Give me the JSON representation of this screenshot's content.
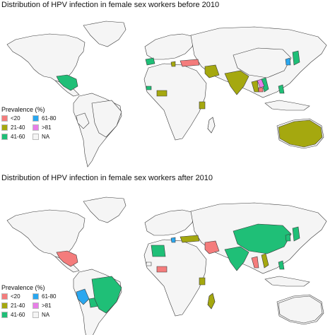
{
  "colors": {
    "land": "#f5f5f5",
    "border": "#3a3a3a",
    "lt20": "#f47c7c",
    "c21_40": "#a5a80f",
    "c41_60": "#1fbf77",
    "c61_80": "#2aa7ef",
    "gt81": "#e87ee8",
    "na": "#f5f5f5"
  },
  "legend": {
    "title": "Prevalence (%)",
    "items": [
      {
        "label": "<20",
        "color": "#f47c7c"
      },
      {
        "label": "61-80",
        "color": "#2aa7ef"
      },
      {
        "label": "21-40",
        "color": "#a5a80f"
      },
      {
        "label": ">81",
        "color": "#e87ee8"
      },
      {
        "label": "41-60",
        "color": "#1fbf77"
      },
      {
        "label": "NA",
        "color": "#f5f5f5"
      }
    ]
  },
  "maps": [
    {
      "title": "Distribution of HPV infection in female sex workers before 2010",
      "regions": {
        "mexico": "41-60",
        "turkey": "<20",
        "iran": "21-40",
        "india": "21-40",
        "thailand": "21-40",
        "vietnam": "41-60",
        "cambodia": "<20",
        "laos": ">81",
        "japan": "41-60",
        "china": "NA",
        "korea": "61-80",
        "philippines": "41-60",
        "kenya": "21-40",
        "west_africa": "21-40",
        "senegal": "41-60",
        "australia": "21-40",
        "brazil": "NA",
        "peru": "NA",
        "spain": "41-60",
        "greece": "21-40",
        "madagascar": "NA"
      }
    },
    {
      "title": "Distribution of HPV infection in female sex workers  after 2010",
      "regions": {
        "mexico": "<20",
        "peru": "61-80",
        "bolivia": "41-60",
        "brazil": "41-60",
        "iran": "<20",
        "india": "41-60",
        "china": "41-60",
        "thailand": "<20",
        "vietnam": "21-40",
        "kenya": "21-40",
        "madagascar": "21-40",
        "west_africa": "<20",
        "algeria": "41-60",
        "turkey": "21-40",
        "greece": "61-80",
        "japan": "41-60",
        "korea": "41-60",
        "philippines": "41-60",
        "australia": "NA",
        "senegal": "NA"
      }
    }
  ]
}
